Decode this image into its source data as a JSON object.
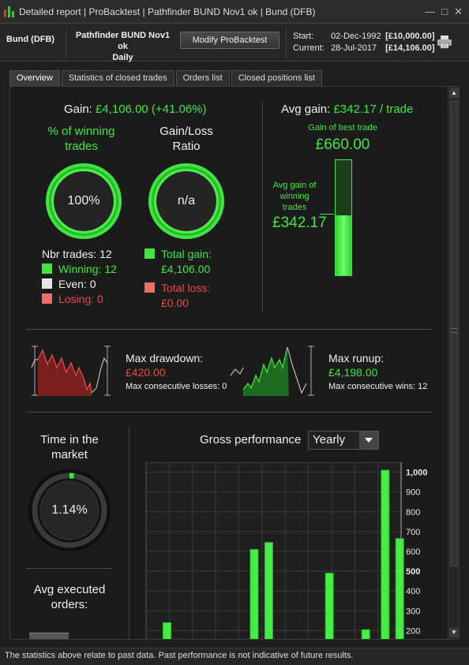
{
  "window": {
    "title": "Detailed report | ProBacktest | Pathfinder BUND Nov1 ok | Bund (DFB)",
    "controls": [
      "—",
      "□",
      "✕"
    ]
  },
  "header": {
    "instrument": "Bund (DFB)",
    "strategy_line1": "Pathfinder BUND Nov1 ok",
    "strategy_line2": "Daily",
    "modify_button": "Modify ProBacktest",
    "start_label": "Start:",
    "start_date": "02-Dec-1992",
    "start_amount": "[£10,000.00]",
    "current_label": "Current:",
    "current_date": "28-Jul-2017",
    "current_amount": "[£14,106.00]"
  },
  "tabs": [
    "Overview",
    "Statistics of closed trades",
    "Orders list",
    "Closed positions list"
  ],
  "overview": {
    "gain_label": "Gain:",
    "gain_value": "£4,106.00 (+41.06%)",
    "pct_winning_label": "% of winning trades",
    "pct_winning_value": "100%",
    "pct_winning_fraction": 1.0,
    "gain_loss_label": "Gain/Loss Ratio",
    "gain_loss_value": "n/a",
    "nbr_trades": "Nbr trades: 12",
    "winning": "Winning: 12",
    "even": "Even: 0",
    "losing": "Losing: 0",
    "total_gain_label": "Total gain:",
    "total_gain_value": "£4,106.00",
    "total_loss_label": "Total loss:",
    "total_loss_value": "£0.00",
    "avg_gain_label": "Avg gain:",
    "avg_gain_value": "£342.17 / trade",
    "best_trade_label": "Gain of best trade",
    "best_trade_value": "£660.00",
    "avg_winning_label": "Avg gain of winning trades",
    "avg_winning_value": "£342.17",
    "avg_to_best_ratio": 0.518
  },
  "drawdown": {
    "max_drawdown_label": "Max drawdown:",
    "max_drawdown_value": "£420.00",
    "max_consec_losses": "Max consecutive losses: 0",
    "max_runup_label": "Max runup:",
    "max_runup_value": "£4,198.00",
    "max_consec_wins": "Max consecutive wins: 12"
  },
  "market": {
    "time_label": "Time in the market",
    "time_value": "1.14%",
    "time_fraction": 0.0114,
    "avg_exec_label": "Avg executed orders:"
  },
  "gross_performance": {
    "label": "Gross performance",
    "period": "Yearly"
  },
  "chart_data": {
    "type": "bar",
    "title": "",
    "ytick_labels": [
      "1,000",
      "900",
      "800",
      "700",
      "600",
      "500",
      "400",
      "300",
      "200"
    ],
    "bold_ticks": [
      "1,000",
      "500"
    ],
    "ylim": [
      150,
      1050
    ],
    "values": [
      240,
      610,
      645,
      490,
      205,
      1010,
      665
    ],
    "x_positions": [
      0.07,
      0.43,
      0.49,
      0.74,
      0.89,
      0.97,
      1.03
    ]
  },
  "footer": "The statistics above relate to past data. Past performance is not indicative of future results.",
  "colors": {
    "green": "#3ee63e",
    "red": "#e84a4a",
    "background": "#1b1b1b"
  }
}
